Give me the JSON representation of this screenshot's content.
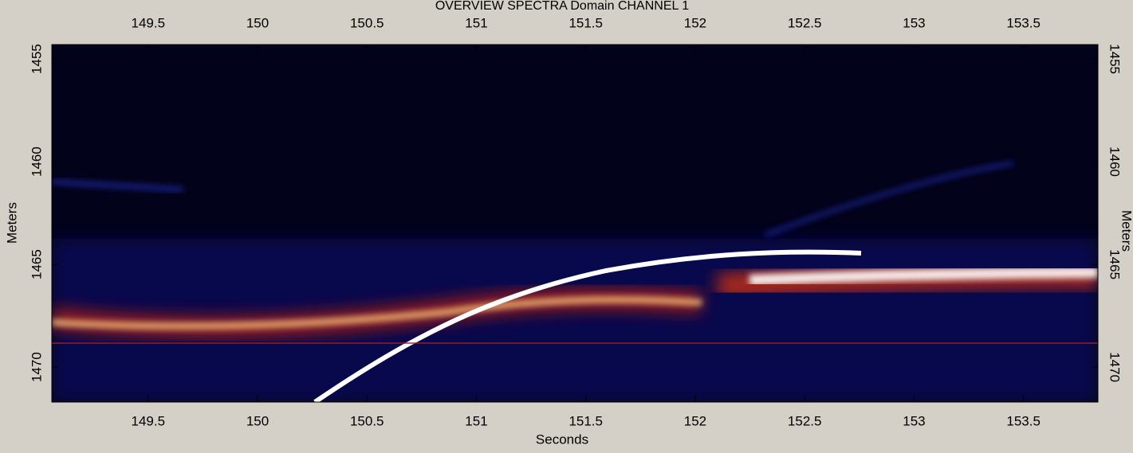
{
  "chart_data": {
    "type": "spectrogram",
    "title": "OVERVIEW SPECTRA Domain CHANNEL 1",
    "x_label": "Seconds",
    "y_label": "Meters",
    "xlim": [
      149.06,
      153.84
    ],
    "xticks": [
      149.5,
      150,
      150.5,
      151,
      151.5,
      152,
      152.5,
      153,
      153.5
    ],
    "ylim": [
      1454.3,
      1471.7
    ],
    "yticks": [
      1455,
      1460,
      1465,
      1470
    ],
    "y_inverted": true
  }
}
